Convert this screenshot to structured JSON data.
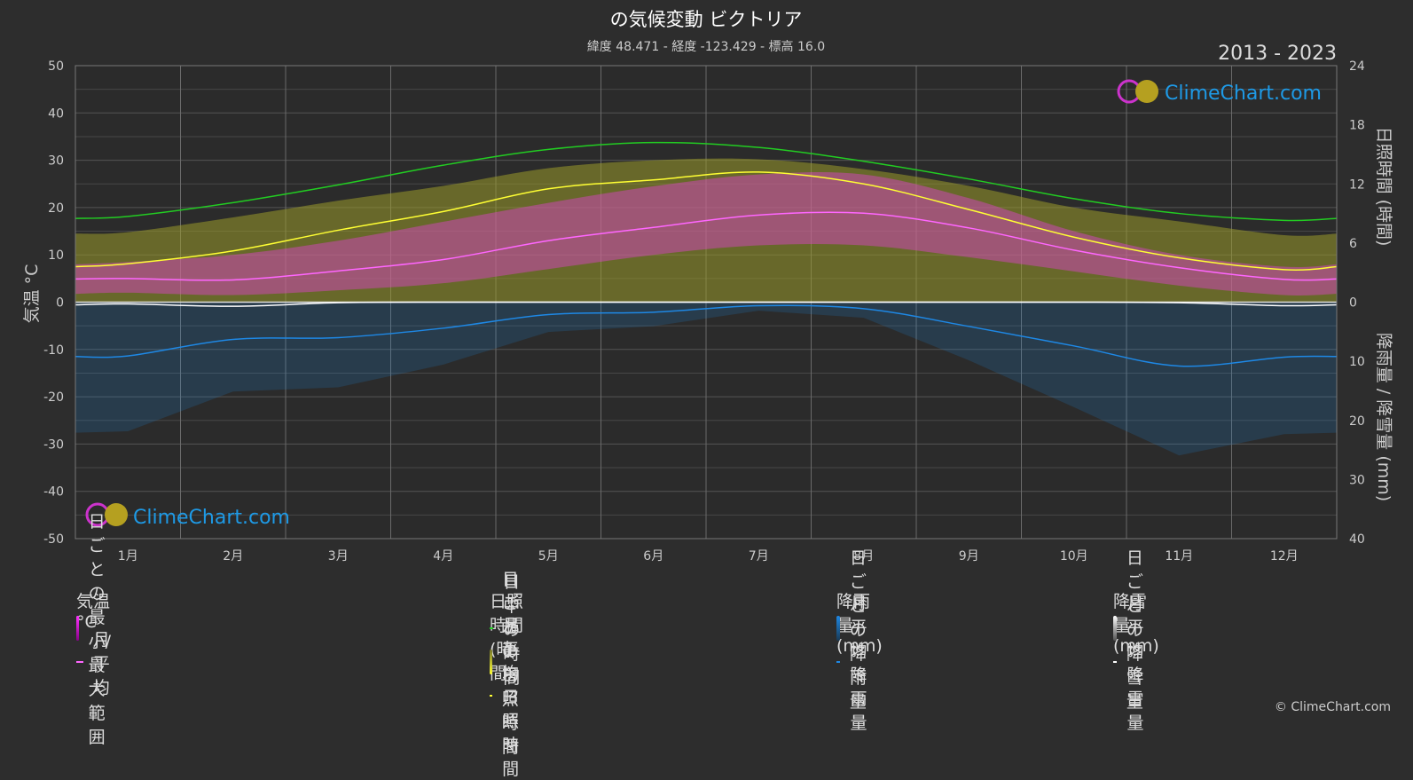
{
  "title": "の気候変動 ビクトリア",
  "subtitle": "緯度 48.471 - 経度 -123.429 - 標高 16.0",
  "period": "2013 - 2023",
  "logo_text": "ClimeChart.com",
  "copyright": "© ClimeChart.com",
  "axes": {
    "left_label": "気温 °C",
    "right_top_label": "日照時間 (時間)",
    "right_bottom_label": "降雨量 / 降雪量 (mm)",
    "left_ticks": [
      "50",
      "40",
      "30",
      "20",
      "10",
      "0",
      "-10",
      "-20",
      "-30",
      "-40",
      "-50"
    ],
    "right_top_ticks": [
      "24",
      "18",
      "12",
      "6",
      "0"
    ],
    "right_bottom_ticks": [
      "10",
      "20",
      "30",
      "40"
    ]
  },
  "legend": {
    "temp": {
      "header": "気温 °C",
      "range": "日ごとの最小/最大範囲",
      "avg": "月平均"
    },
    "sun": {
      "header": "日照時間 (時間)",
      "daylight": "日中の時間",
      "daily": "日ごとの日照時間",
      "avg": "月平均日照時間"
    },
    "rain": {
      "header": "降雨量 (mm)",
      "daily": "日ごとの降雨量",
      "avg": "月平均降雨量"
    },
    "snow": {
      "header": "降雪量 (mm)",
      "daily": "日ごとの降雪量",
      "avg": "月平均降雪量"
    }
  },
  "colors": {
    "daylight": "#22cc22",
    "sunshine_avg": "#ffff33",
    "temp_avg": "#ff66ff",
    "temp_range": "#e040d0",
    "sunshine_fill": "#9a9a2a",
    "rain": "#1e88e5",
    "snow": "#ffffff"
  },
  "chart_data": {
    "type": "line",
    "categories": [
      "1月",
      "2月",
      "3月",
      "4月",
      "5月",
      "6月",
      "7月",
      "8月",
      "9月",
      "10月",
      "11月",
      "12月"
    ],
    "temp_axis": {
      "label": "気温 °C",
      "ylim": [
        -50,
        50
      ]
    },
    "sun_axis": {
      "label": "日照時間 (時間)",
      "ylim": [
        0,
        24
      ]
    },
    "precip_axis": {
      "label": "降雨量 / 降雪量 (mm)",
      "ylim": [
        0,
        40
      ]
    },
    "series": [
      {
        "name": "日中の時間",
        "axis": "sun",
        "values": [
          8.7,
          10.1,
          11.9,
          13.9,
          15.5,
          16.2,
          15.7,
          14.3,
          12.5,
          10.5,
          9.0,
          8.3
        ]
      },
      {
        "name": "月平均日照時間",
        "axis": "sun",
        "values": [
          3.9,
          5.2,
          7.3,
          9.2,
          11.5,
          12.4,
          13.2,
          12.0,
          9.4,
          6.6,
          4.5,
          3.3
        ]
      },
      {
        "name": "日ごとの日照時間",
        "axis": "sun",
        "values": [
          7.1,
          8.6,
          10.3,
          11.8,
          13.6,
          14.4,
          14.5,
          13.5,
          11.8,
          9.6,
          8.2,
          6.8
        ]
      },
      {
        "name": "月平均",
        "axis": "temp",
        "values": [
          5.0,
          4.7,
          6.6,
          9.0,
          13.0,
          15.8,
          18.4,
          18.8,
          15.7,
          11.0,
          7.3,
          4.8
        ]
      },
      {
        "name": "日ごとの最小/最大範囲 (max)",
        "axis": "temp",
        "values": [
          8.5,
          10.0,
          13.0,
          17.0,
          21.0,
          24.5,
          27.0,
          27.0,
          22.0,
          15.0,
          10.0,
          7.5
        ]
      },
      {
        "name": "日ごとの最小/最大範囲 (min)",
        "axis": "temp",
        "values": [
          2.0,
          1.5,
          2.5,
          4.0,
          7.0,
          10.0,
          12.0,
          12.0,
          9.5,
          6.5,
          3.5,
          1.5
        ]
      },
      {
        "name": "月平均降雨量",
        "axis": "precip",
        "values": [
          9.1,
          6.3,
          6.0,
          4.4,
          2.1,
          1.7,
          0.6,
          1.1,
          4.1,
          7.4,
          10.8,
          9.3
        ]
      },
      {
        "name": "月平均降雪量",
        "axis": "precip",
        "values": [
          0.3,
          0.7,
          0.1,
          0.0,
          0.0,
          0.0,
          0.0,
          0.0,
          0.0,
          0.0,
          0.1,
          0.6
        ]
      }
    ]
  }
}
